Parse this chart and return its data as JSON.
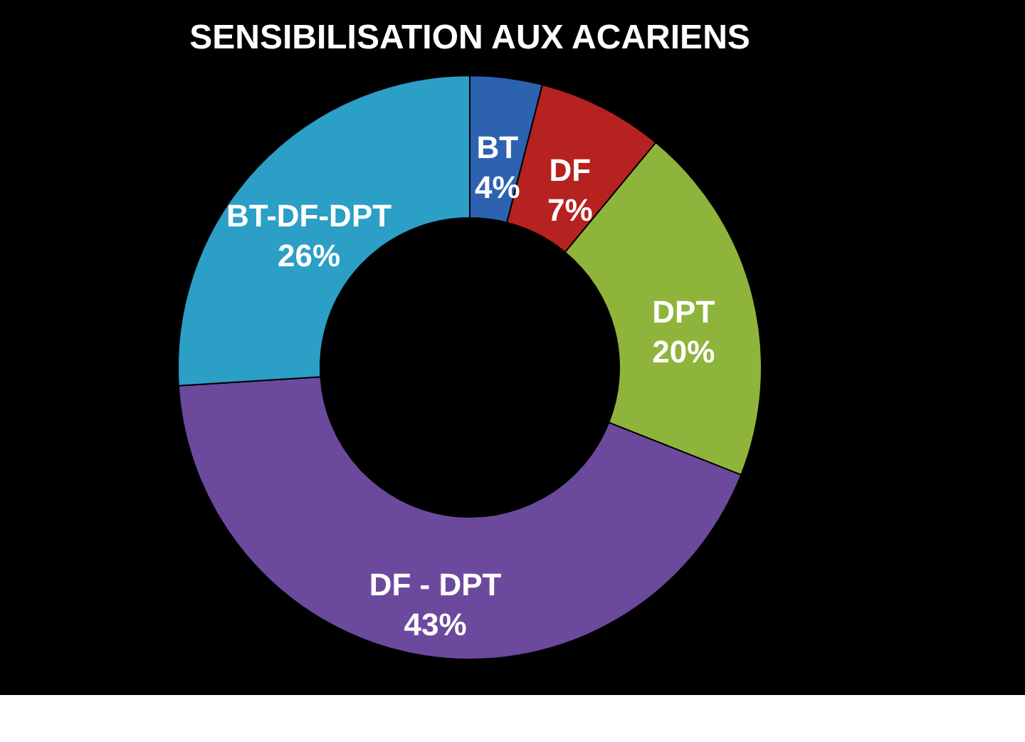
{
  "chart_data": {
    "type": "donut",
    "title": "SENSIBILISATION AUX ACARIENS",
    "categories": [
      "BT",
      "DF",
      "DPT",
      "DF - DPT",
      "BT-DF-DPT"
    ],
    "values": [
      4,
      7,
      20,
      43,
      26
    ],
    "value_labels": [
      "4%",
      "7%",
      "20%",
      "43%",
      "26%"
    ],
    "colors": [
      "#2d62b0",
      "#b5221f",
      "#8fb43c",
      "#6b4a9e",
      "#2b9fc6"
    ],
    "legend": false
  }
}
